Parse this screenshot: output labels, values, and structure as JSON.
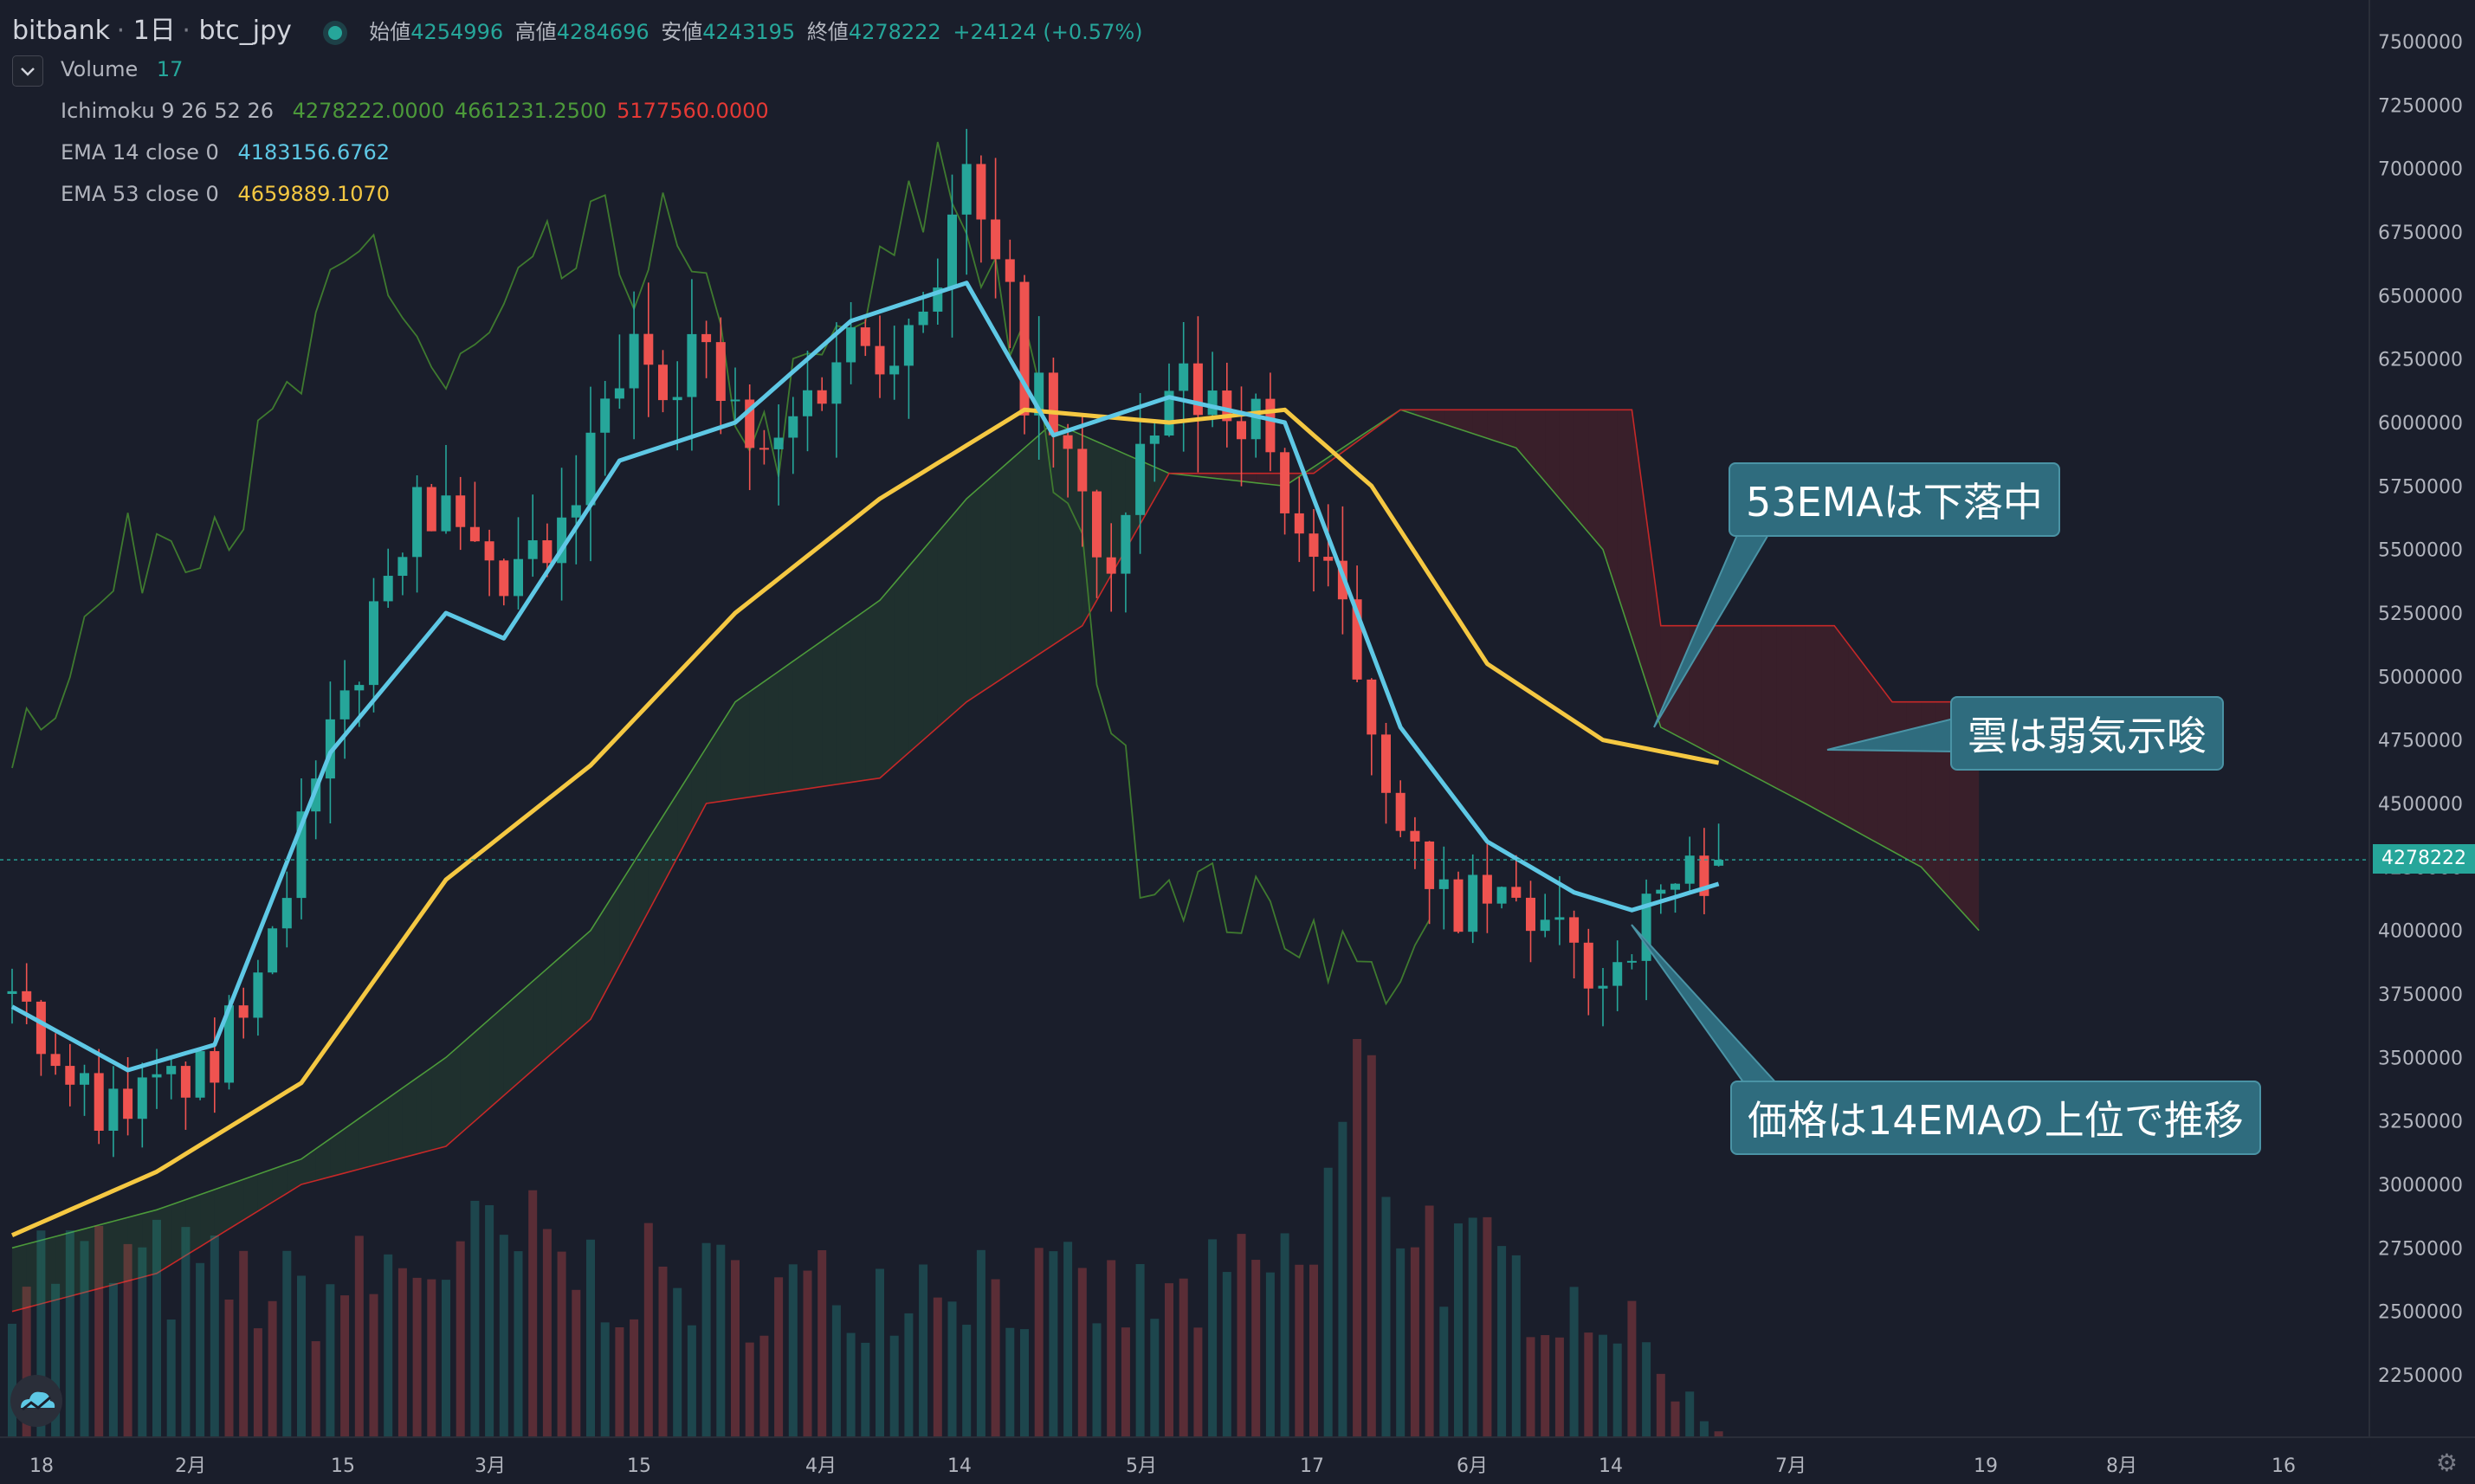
{
  "header": {
    "exchange": "bitbank",
    "interval": "1日",
    "symbol": "btc_jpy",
    "ohlc": {
      "open_label": "始値",
      "open": "4254996",
      "high_label": "高値",
      "high": "4284696",
      "low_label": "安値",
      "low": "4243195",
      "close_label": "終値",
      "close": "4278222",
      "change": "+24124 (+0.57%)"
    }
  },
  "indicators": {
    "volume": {
      "label": "Volume",
      "value": "17"
    },
    "ichimoku": {
      "label": "Ichimoku 9 26 52 26",
      "v1": "4278222.0000",
      "v2": "4661231.2500",
      "v3": "5177560.0000"
    },
    "ema14": {
      "label": "EMA 14 close 0",
      "value": "4183156.6762"
    },
    "ema53": {
      "label": "EMA 53 close 0",
      "value": "4659889.1070"
    }
  },
  "annotations": {
    "ema53": "53EMAは下落中",
    "cloud": "雲は弱気示唆",
    "price": "価格は14EMAの上位で推移"
  },
  "price_axis": {
    "ticks": [
      "7500000",
      "7250000",
      "7000000",
      "6750000",
      "6500000",
      "6250000",
      "6000000",
      "5750000",
      "5500000",
      "5250000",
      "5000000",
      "4750000",
      "4500000",
      "4250000",
      "4000000",
      "3750000",
      "3500000",
      "3250000",
      "3000000",
      "2750000",
      "2500000",
      "2250000"
    ],
    "current_price": "4278222"
  },
  "time_axis": {
    "ticks": [
      "18",
      "2月",
      "15",
      "3月",
      "15",
      "4月",
      "14",
      "5月",
      "17",
      "6月",
      "14",
      "7月",
      "19",
      "8月",
      "16"
    ]
  },
  "colors": {
    "background": "#1a1e2b",
    "up": "#26a69a",
    "down": "#ef5350",
    "ema14": "#5ec8e5",
    "ema53": "#f5c842",
    "leading_span_a": "#4c9a3a",
    "leading_span_b": "#c62828",
    "lagging_span": "#3f7a2f",
    "price_line": "#26a69a"
  },
  "chart_data": {
    "type": "candlestick",
    "x_unit": "daily candles from 2021-01-18",
    "ylim": [
      2100000,
      7550000
    ],
    "y_ticks": [
      2250000,
      2500000,
      2750000,
      3000000,
      3250000,
      3500000,
      3750000,
      4000000,
      4250000,
      4500000,
      4750000,
      5000000,
      5250000,
      5500000,
      5750000,
      6000000,
      6250000,
      6500000,
      6750000,
      7000000,
      7250000,
      7500000
    ],
    "close_keyframes": [
      [
        0,
        3750000
      ],
      [
        6,
        3300000
      ],
      [
        14,
        3450000
      ],
      [
        22,
        4700000
      ],
      [
        28,
        5800000
      ],
      [
        33,
        5300000
      ],
      [
        38,
        5500000
      ],
      [
        42,
        6200000
      ],
      [
        47,
        6300000
      ],
      [
        52,
        5800000
      ],
      [
        57,
        6300000
      ],
      [
        62,
        6400000
      ],
      [
        66,
        6900000
      ],
      [
        70,
        6200000
      ],
      [
        76,
        5400000
      ],
      [
        80,
        6100000
      ],
      [
        85,
        6100000
      ],
      [
        92,
        5200000
      ],
      [
        98,
        4100000
      ],
      [
        104,
        4100000
      ],
      [
        110,
        3800000
      ],
      [
        114,
        4150000
      ],
      [
        118,
        4278222
      ]
    ],
    "ema14_keyframes": [
      [
        0,
        3700000
      ],
      [
        8,
        3450000
      ],
      [
        14,
        3550000
      ],
      [
        22,
        4700000
      ],
      [
        30,
        5250000
      ],
      [
        34,
        5150000
      ],
      [
        42,
        5850000
      ],
      [
        50,
        6000000
      ],
      [
        58,
        6400000
      ],
      [
        66,
        6550000
      ],
      [
        72,
        5950000
      ],
      [
        80,
        6100000
      ],
      [
        88,
        6000000
      ],
      [
        96,
        4800000
      ],
      [
        102,
        4350000
      ],
      [
        108,
        4150000
      ],
      [
        112,
        4080000
      ],
      [
        118,
        4183157
      ]
    ],
    "ema53_keyframes": [
      [
        0,
        2800000
      ],
      [
        10,
        3050000
      ],
      [
        20,
        3400000
      ],
      [
        30,
        4200000
      ],
      [
        40,
        4650000
      ],
      [
        50,
        5250000
      ],
      [
        60,
        5700000
      ],
      [
        70,
        6050000
      ],
      [
        80,
        6000000
      ],
      [
        88,
        6050000
      ],
      [
        94,
        5750000
      ],
      [
        102,
        5050000
      ],
      [
        110,
        4750000
      ],
      [
        118,
        4659889
      ]
    ],
    "span_a_keyframes": [
      [
        0,
        2750000
      ],
      [
        10,
        2900000
      ],
      [
        20,
        3100000
      ],
      [
        30,
        3500000
      ],
      [
        40,
        4000000
      ],
      [
        50,
        4900000
      ],
      [
        60,
        5300000
      ],
      [
        66,
        5700000
      ],
      [
        72,
        6000000
      ],
      [
        80,
        5800000
      ],
      [
        88,
        5750000
      ],
      [
        96,
        6050000
      ],
      [
        104,
        5900000
      ],
      [
        110,
        5500000
      ],
      [
        114,
        4800000
      ],
      [
        124,
        4500000
      ],
      [
        132,
        4250000
      ],
      [
        136,
        4000000
      ]
    ],
    "span_b_keyframes": [
      [
        0,
        2500000
      ],
      [
        10,
        2650000
      ],
      [
        20,
        3000000
      ],
      [
        30,
        3150000
      ],
      [
        40,
        3650000
      ],
      [
        48,
        4500000
      ],
      [
        60,
        4600000
      ],
      [
        66,
        4900000
      ],
      [
        74,
        5200000
      ],
      [
        80,
        5800000
      ],
      [
        90,
        5800000
      ],
      [
        96,
        6050000
      ],
      [
        112,
        6050000
      ],
      [
        114,
        5200000
      ],
      [
        126,
        5200000
      ],
      [
        130,
        4900000
      ],
      [
        136,
        4900000
      ]
    ],
    "lagging_keyframes": [
      [
        0,
        4750000
      ],
      [
        10,
        5600000
      ],
      [
        16,
        5700000
      ],
      [
        25,
        6700000
      ],
      [
        30,
        6100000
      ],
      [
        38,
        6600000
      ],
      [
        45,
        6700000
      ],
      [
        52,
        5900000
      ],
      [
        60,
        6500000
      ],
      [
        64,
        7000000
      ],
      [
        68,
        6600000
      ],
      [
        74,
        5400000
      ],
      [
        78,
        4300000
      ],
      [
        84,
        4100000
      ],
      [
        90,
        4000000
      ],
      [
        94,
        3800000
      ],
      [
        98,
        3900000
      ]
    ],
    "volume_keyframes": [
      [
        0,
        520
      ],
      [
        10,
        480
      ],
      [
        20,
        400
      ],
      [
        30,
        520
      ],
      [
        36,
        540
      ],
      [
        40,
        470
      ],
      [
        50,
        430
      ],
      [
        58,
        420
      ],
      [
        65,
        500
      ],
      [
        70,
        430
      ],
      [
        80,
        380
      ],
      [
        90,
        520
      ],
      [
        93,
        1050
      ],
      [
        96,
        700
      ],
      [
        100,
        500
      ],
      [
        110,
        380
      ],
      [
        118,
        17
      ]
    ]
  }
}
